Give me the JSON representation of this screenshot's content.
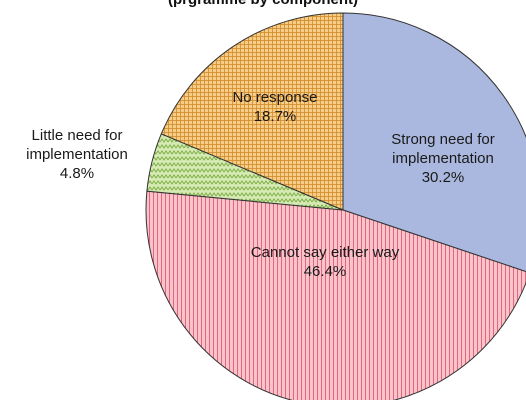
{
  "chart_data": {
    "type": "pie",
    "title": "(prgramme by component)",
    "legend": "none",
    "slices": [
      {
        "label_lines": [
          "Strong need for",
          "implementation"
        ],
        "value_label": "30.2%",
        "value": 30.2,
        "color": "#aab8df",
        "pattern": "solid"
      },
      {
        "label_lines": [
          "Cannot say either way"
        ],
        "value_label": "46.4%",
        "value": 46.4,
        "color": "#f7a7b3",
        "pattern": "vertical-lines"
      },
      {
        "label_lines": [
          "Little need for",
          "implementation"
        ],
        "value_label": "4.8%",
        "value": 4.8,
        "color": "#c8e2a0",
        "pattern": "zigzag"
      },
      {
        "label_lines": [
          "No response"
        ],
        "value_label": "18.7%",
        "value": 18.7,
        "color": "#f5c06e",
        "pattern": "grid"
      }
    ]
  }
}
